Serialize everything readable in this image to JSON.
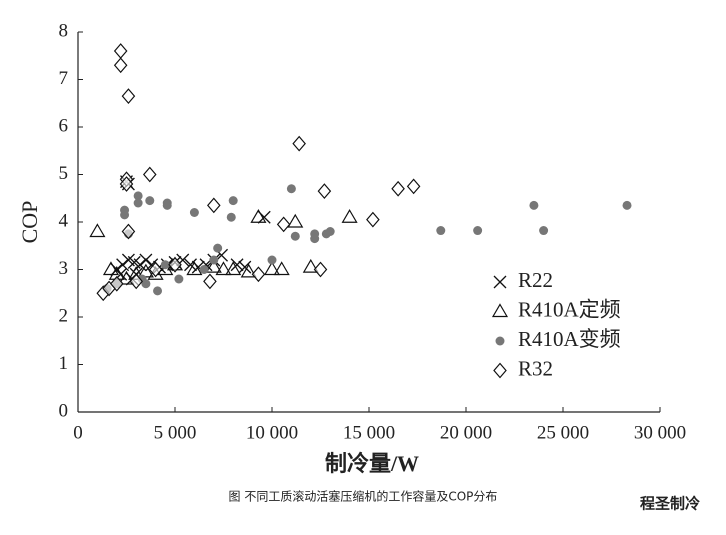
{
  "chart_data": {
    "type": "scatter",
    "xlabel": "制冷量/W",
    "ylabel": "COP",
    "caption": "图  不同工质滚动活塞压缩机的工作容量及COP分布",
    "watermark": "程圣制冷",
    "xlim": [
      0,
      30000
    ],
    "ylim": [
      0,
      8
    ],
    "xticks": [
      0,
      {
        "value": 5000,
        "label": "5 000"
      },
      {
        "value": 10000,
        "label": "10 000"
      },
      {
        "value": 15000,
        "label": "15 000"
      },
      {
        "value": 20000,
        "label": "20 000"
      },
      {
        "value": 25000,
        "label": "25 000"
      },
      {
        "value": 30000,
        "label": "30 000"
      }
    ],
    "yticks": [
      0,
      1,
      2,
      3,
      4,
      5,
      6,
      7,
      8
    ],
    "legend": "right",
    "series": [
      {
        "name": "R22",
        "marker": "x",
        "color": "#111111",
        "x": [
          2000,
          2200,
          2300,
          2600,
          2800,
          2900,
          3000,
          3200,
          3500,
          3800,
          4200,
          4600,
          5000,
          5400,
          5800,
          6200,
          6600,
          7000,
          7400,
          8200,
          8600,
          9600,
          2500,
          2600
        ],
        "values": [
          3.0,
          2.9,
          3.1,
          3.2,
          2.8,
          3.15,
          2.9,
          3.1,
          3.2,
          3.1,
          3.05,
          3.1,
          3.15,
          3.2,
          3.1,
          3.05,
          3.1,
          3.2,
          3.3,
          3.1,
          3.05,
          4.1,
          4.85,
          4.8
        ]
      },
      {
        "name": "R410A定频",
        "marker": "triangle",
        "color": "#111111",
        "x": [
          1000,
          1700,
          2000,
          2500,
          3000,
          3500,
          4000,
          4500,
          5000,
          6000,
          7000,
          7500,
          8000,
          8800,
          9300,
          10000,
          10500,
          11200,
          12000,
          14000
        ],
        "values": [
          3.8,
          3.0,
          2.9,
          2.8,
          2.9,
          2.95,
          2.9,
          3.0,
          3.1,
          3.0,
          3.05,
          3.0,
          3.0,
          2.95,
          4.1,
          3.0,
          3.0,
          4.0,
          3.05,
          4.1
        ]
      },
      {
        "name": "R410A变频",
        "marker": "circle",
        "color": "#777777",
        "x": [
          1500,
          2000,
          2400,
          2400,
          2600,
          3100,
          3100,
          3700,
          3300,
          4100,
          4600,
          4600,
          5200,
          6000,
          7000,
          7200,
          7900,
          8000,
          10000,
          11000,
          11200,
          12200,
          12200,
          12800,
          13000,
          18700,
          20600,
          23500,
          24000,
          28300,
          3500,
          4500,
          6500
        ],
        "values": [
          2.6,
          2.7,
          4.15,
          4.25,
          3.75,
          4.55,
          4.4,
          4.45,
          2.8,
          2.55,
          4.4,
          4.35,
          2.8,
          4.2,
          3.2,
          3.45,
          4.1,
          4.45,
          3.2,
          4.7,
          3.7,
          3.75,
          3.65,
          3.75,
          3.8,
          3.82,
          3.82,
          4.35,
          3.82,
          4.35,
          2.7,
          3.1,
          3.0
        ]
      },
      {
        "name": "R32",
        "marker": "diamond",
        "color": "#111111",
        "x": [
          1300,
          1600,
          2000,
          2200,
          2200,
          2600,
          2500,
          2500,
          2600,
          3000,
          3700,
          4000,
          5000,
          6800,
          7000,
          9300,
          10600,
          11400,
          12500,
          12700,
          15200,
          16500,
          17300
        ],
        "values": [
          2.5,
          2.6,
          2.7,
          7.6,
          7.3,
          6.65,
          4.9,
          4.8,
          3.8,
          2.75,
          5.0,
          3.0,
          3.1,
          2.75,
          4.35,
          2.9,
          3.95,
          5.65,
          3.0,
          4.65,
          4.05,
          4.7,
          4.75
        ]
      }
    ]
  }
}
